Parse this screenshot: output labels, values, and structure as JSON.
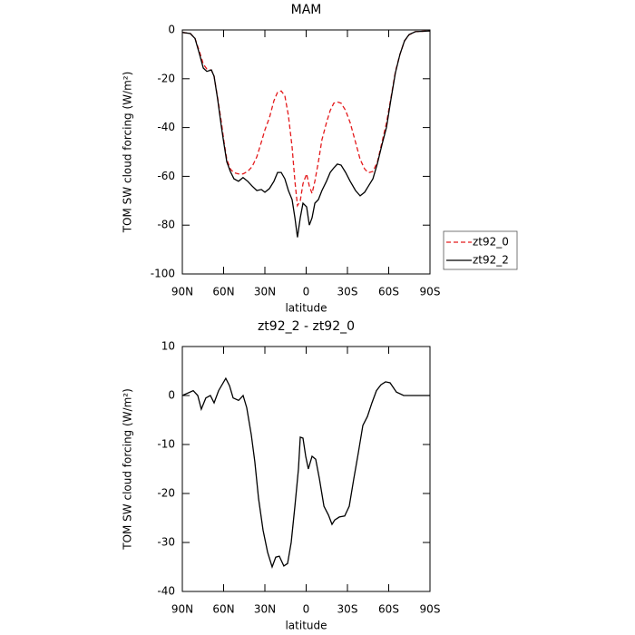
{
  "chart_data": [
    {
      "type": "line",
      "title": "MAM",
      "xlabel": "latitude",
      "ylabel": "TOM SW cloud forcing (W/m²)",
      "x": [
        90,
        84.1,
        80.8,
        77.5,
        74.8,
        72.2,
        68.9,
        66.9,
        64.3,
        61.6,
        59.7,
        57.7,
        55.1,
        52.5,
        49.2,
        45.9,
        42.5,
        39.2,
        35.9,
        32.6,
        30,
        26.7,
        23.4,
        20.8,
        18.1,
        15.5,
        12.9,
        10.2,
        8.2,
        6.3,
        4.3,
        2.3,
        -0.3,
        -2.3,
        -4.3,
        -6.3,
        -8.9,
        -11.5,
        -14.8,
        -17.5,
        -20.1,
        -22.7,
        -25.4,
        -28.7,
        -32,
        -35.9,
        -39.2,
        -42.5,
        -45.2,
        -48.5,
        -51.8,
        -55.1,
        -58.4,
        -61.6,
        -64.9,
        -68.2,
        -71.5,
        -74.8,
        -79.4,
        -90
      ],
      "series": [
        {
          "name": "zt92_0",
          "color": "#e41a1c",
          "dash": true,
          "values": [
            -1,
            -1.5,
            -3.5,
            -9,
            -14,
            -16,
            -16.5,
            -19,
            -28,
            -38,
            -46,
            -53,
            -57,
            -58.5,
            -59,
            -59,
            -58,
            -56,
            -52,
            -46,
            -41,
            -36,
            -29,
            -25.5,
            -25,
            -27,
            -35,
            -48,
            -62,
            -72,
            -70,
            -63,
            -59,
            -64,
            -67,
            -62,
            -54,
            -45,
            -38,
            -33,
            -30,
            -29.5,
            -30,
            -33,
            -38,
            -46,
            -53,
            -57,
            -58.5,
            -58,
            -54,
            -46,
            -38,
            -28,
            -17,
            -10,
            -4.5,
            -2,
            -0.7,
            -0.4
          ]
        },
        {
          "name": "zt92_2",
          "color": "#000000",
          "dash": false,
          "values": [
            -1,
            -1.5,
            -3.5,
            -10,
            -15.6,
            -17,
            -16.4,
            -19,
            -28.6,
            -39.8,
            -47,
            -54,
            -58,
            -61,
            -62,
            -60.5,
            -62,
            -64,
            -65.8,
            -65.4,
            -66.5,
            -65,
            -62,
            -58.4,
            -58.4,
            -61,
            -65.8,
            -69.5,
            -77,
            -85,
            -77,
            -71,
            -72.5,
            -80,
            -77,
            -71,
            -69.5,
            -65.8,
            -62,
            -58.4,
            -56.5,
            -55,
            -55.4,
            -58.4,
            -62,
            -65.8,
            -68,
            -66.5,
            -64,
            -61,
            -54.6,
            -47,
            -39.8,
            -28.6,
            -17.5,
            -10,
            -4.5,
            -1.9,
            -0.7,
            -0.4
          ]
        }
      ],
      "xlim": [
        90,
        -90
      ],
      "ylim": [
        -100,
        0
      ],
      "xticks": [
        {
          "value": 90,
          "label": "90N"
        },
        {
          "value": 60,
          "label": "60N"
        },
        {
          "value": 30,
          "label": "30N"
        },
        0,
        {
          "value": -30,
          "label": "30S"
        },
        {
          "value": -60,
          "label": "60S"
        },
        {
          "value": -90,
          "label": "90S"
        }
      ],
      "yticks": [
        0,
        -20,
        -40,
        -60,
        -80,
        -100
      ],
      "legend": "outside-right"
    },
    {
      "type": "line",
      "title": "zt92_2 - zt92_0",
      "xlabel": "latitude",
      "ylabel": "TOM SW cloud forcing (W/m²)",
      "x": [
        90,
        82.1,
        78.8,
        76.2,
        72.9,
        69.6,
        66.9,
        63.6,
        58.4,
        55.7,
        53.1,
        49.1,
        45.8,
        43.2,
        39.9,
        37.3,
        34.6,
        31.3,
        28,
        24.7,
        22.1,
        19.5,
        16.2,
        13.5,
        10.9,
        8.2,
        5.6,
        4.3,
        2.3,
        0.3,
        -1.6,
        -4.3,
        -6.9,
        -9.6,
        -12.9,
        -16.2,
        -18.8,
        -20.8,
        -24.1,
        -28,
        -31.3,
        -34.6,
        -37.9,
        -41.2,
        -44.5,
        -47.8,
        -51.1,
        -54.4,
        -57.7,
        -61,
        -65.6,
        -70.9,
        -80.8,
        -90
      ],
      "series": [
        {
          "color": "#000000",
          "dash": false,
          "values": [
            0,
            1,
            0,
            -2.8,
            -0.5,
            0,
            -1.5,
            1,
            3.5,
            2,
            -0.5,
            -1,
            0,
            -2.5,
            -8,
            -13.5,
            -21,
            -27.5,
            -32,
            -35,
            -33,
            -32.8,
            -34.8,
            -34.3,
            -30,
            -22.6,
            -15,
            -8.5,
            -8.7,
            -12.4,
            -15,
            -12.4,
            -13,
            -17,
            -22.6,
            -24.4,
            -26.3,
            -25.4,
            -24.8,
            -24.6,
            -22.6,
            -17,
            -11.7,
            -6.1,
            -4.3,
            -1.5,
            1,
            2.2,
            2.8,
            2.6,
            0.7,
            0,
            0,
            0
          ]
        }
      ],
      "xlim": [
        90,
        -90
      ],
      "ylim": [
        -40,
        10
      ],
      "xticks": [
        {
          "value": 90,
          "label": "90N"
        },
        {
          "value": 60,
          "label": "60N"
        },
        {
          "value": 30,
          "label": "30N"
        },
        0,
        {
          "value": -30,
          "label": "30S"
        },
        {
          "value": -60,
          "label": "60S"
        },
        {
          "value": -90,
          "label": "90S"
        }
      ],
      "yticks": [
        10,
        0,
        -10,
        -20,
        -30,
        -40
      ]
    }
  ]
}
